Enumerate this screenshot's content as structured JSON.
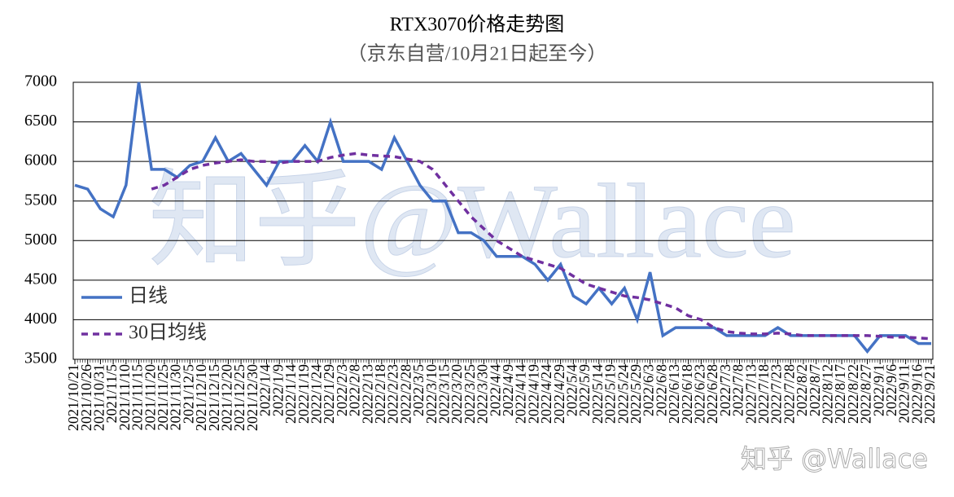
{
  "chart_data": {
    "type": "line",
    "title": "RTX3070价格走势图",
    "subtitle": "（京东自营/10月21日起至今）",
    "categories": [
      "2021/10/21",
      "2021/10/26",
      "2021/10/31",
      "2021/11/5",
      "2021/11/10",
      "2021/11/15",
      "2021/11/20",
      "2021/11/25",
      "2021/11/30",
      "2021/12/5",
      "2021/12/10",
      "2021/12/15",
      "2021/12/20",
      "2021/12/25",
      "2021/12/30",
      "2022/1/4",
      "2022/1/9",
      "2022/1/14",
      "2022/1/19",
      "2022/1/24",
      "2022/1/29",
      "2022/2/3",
      "2022/2/8",
      "2022/2/13",
      "2022/2/18",
      "2022/2/23",
      "2022/2/28",
      "2022/3/5",
      "2022/3/10",
      "2022/3/15",
      "2022/3/20",
      "2022/3/25",
      "2022/3/30",
      "2022/4/4",
      "2022/4/9",
      "2022/4/14",
      "2022/4/19",
      "2022/4/24",
      "2022/4/29",
      "2022/5/4",
      "2022/5/9",
      "2022/5/14",
      "2022/5/19",
      "2022/5/24",
      "2022/5/29",
      "2022/6/3",
      "2022/6/8",
      "2022/6/13",
      "2022/6/18",
      "2022/6/23",
      "2022/6/28",
      "2022/7/3",
      "2022/7/8",
      "2022/7/13",
      "2022/7/18",
      "2022/7/23",
      "2022/7/28",
      "2022/8/2",
      "2022/8/7",
      "2022/8/12",
      "2022/8/17",
      "2022/8/22",
      "2022/8/27",
      "2022/9/1",
      "2022/9/6",
      "2022/9/11",
      "2022/9/16",
      "2022/9/21"
    ],
    "series": [
      {
        "name": "日线",
        "color": "#4472c4",
        "dash": false,
        "values": [
          5700,
          5650,
          5400,
          5300,
          5700,
          7000,
          5900,
          5900,
          5800,
          5950,
          6000,
          6300,
          6000,
          6100,
          5900,
          5700,
          6000,
          6000,
          6200,
          6000,
          6500,
          6000,
          6000,
          6000,
          5900,
          6300,
          6000,
          5700,
          5500,
          5500,
          5100,
          5100,
          5000,
          4800,
          4800,
          4800,
          4700,
          4500,
          4700,
          4300,
          4200,
          4400,
          4200,
          4400,
          4000,
          4600,
          3800,
          3900,
          3900,
          3900,
          3900,
          3800,
          3800,
          3800,
          3800,
          3900,
          3800,
          3800,
          3800,
          3800,
          3800,
          3800,
          3600,
          3800,
          3800,
          3800,
          3700,
          3700
        ]
      },
      {
        "name": "30日均线",
        "color": "#7030a0",
        "dash": true,
        "values": [
          null,
          null,
          null,
          null,
          null,
          null,
          5650,
          5700,
          5800,
          5900,
          5950,
          5980,
          6000,
          6020,
          6000,
          6000,
          5980,
          6000,
          6000,
          6000,
          6050,
          6080,
          6100,
          6080,
          6070,
          6060,
          6030,
          6000,
          5900,
          5700,
          5500,
          5300,
          5150,
          5000,
          4900,
          4800,
          4750,
          4700,
          4650,
          4550,
          4450,
          4400,
          4350,
          4300,
          4280,
          4250,
          4200,
          4150,
          4050,
          4000,
          3900,
          3850,
          3830,
          3820,
          3820,
          3830,
          3820,
          3800,
          3800,
          3800,
          3800,
          3800,
          3800,
          3790,
          3780,
          3780,
          3770,
          3760
        ]
      }
    ],
    "ylim": [
      3500,
      7000
    ],
    "yticks": [
      3500,
      4000,
      4500,
      5000,
      5500,
      6000,
      6500,
      7000
    ],
    "grid": true,
    "legend": "left",
    "watermark": "知乎@Wallace",
    "footer": "知乎 @Wallace"
  }
}
